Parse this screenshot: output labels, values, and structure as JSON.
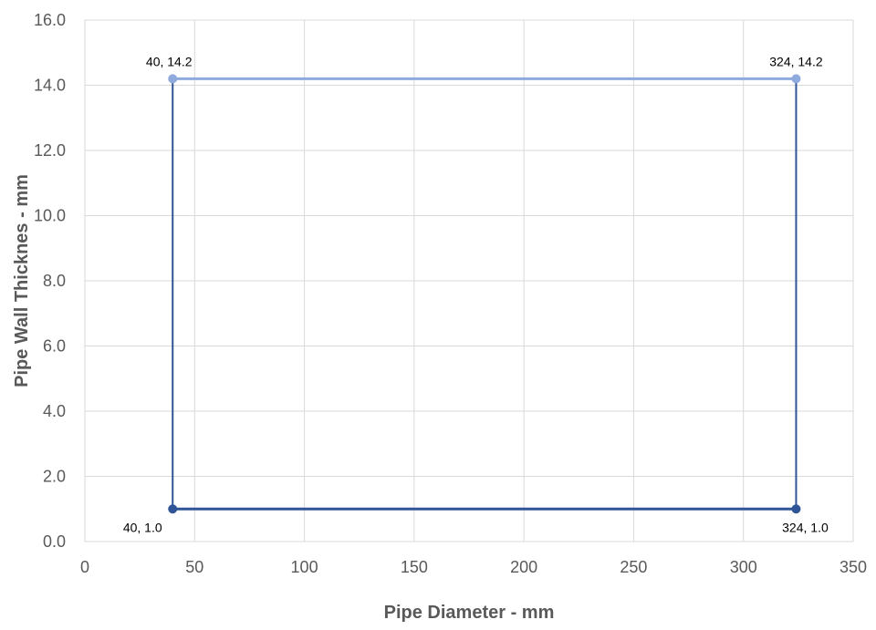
{
  "chart_data": {
    "type": "scatter",
    "title": "",
    "xlabel": "Pipe Diameter - mm",
    "ylabel": "Pipe Wall Thicknes - mm",
    "xlim": [
      0,
      350
    ],
    "ylim": [
      0,
      16
    ],
    "xticks": [
      0,
      50,
      100,
      150,
      200,
      250,
      300,
      350
    ],
    "yticks": [
      0,
      2,
      4,
      6,
      8,
      10,
      12,
      14,
      16
    ],
    "xtick_labels": [
      "0",
      "50",
      "100",
      "150",
      "200",
      "250",
      "300",
      "350"
    ],
    "ytick_labels": [
      "0.0",
      "2.0",
      "4.0",
      "6.0",
      "8.0",
      "10.0",
      "12.0",
      "14.0",
      "16.0"
    ],
    "grid": true,
    "legend": "none",
    "series": [
      {
        "color": "#8FAADC",
        "points": [
          {
            "x": 40,
            "y": 14.2,
            "label": "40, 14.2"
          },
          {
            "x": 324,
            "y": 14.2,
            "label": "324, 14.2"
          }
        ]
      },
      {
        "color": "#2F5597",
        "points": [
          {
            "x": 40,
            "y": 1.0,
            "label": "40, 1.0"
          },
          {
            "x": 324,
            "y": 1.0,
            "label": "324, 1.0"
          }
        ]
      }
    ],
    "connectors": [
      {
        "color": "#2F5597",
        "from": [
          40,
          1.0
        ],
        "to": [
          40,
          14.2
        ]
      },
      {
        "color": "#2F5597",
        "from": [
          324,
          1.0
        ],
        "to": [
          324,
          14.2
        ]
      }
    ],
    "colors": {
      "grid": "#D9D9D9",
      "plot_border": "#D9D9D9"
    }
  }
}
